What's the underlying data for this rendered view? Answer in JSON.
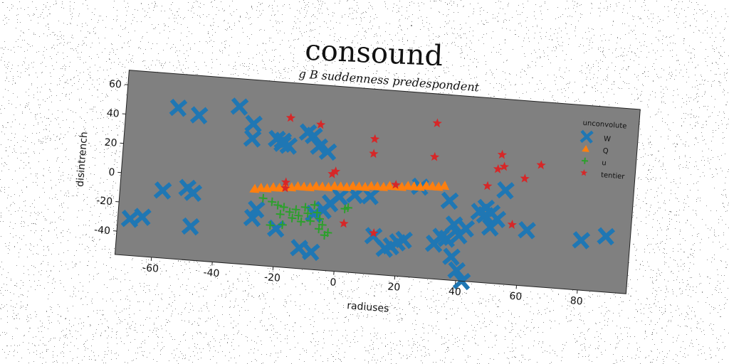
{
  "page": {
    "title": "consound"
  },
  "chart_data": {
    "type": "scatter",
    "title": "g B suddenness predespondent",
    "xlabel": "radiuses",
    "ylabel": "disintrench",
    "xlim": [
      -72,
      96
    ],
    "ylim": [
      -56,
      70
    ],
    "xticks": [
      -60,
      -40,
      -20,
      0,
      20,
      40,
      60,
      80
    ],
    "yticks": [
      -40,
      -20,
      0,
      20,
      40,
      60
    ],
    "grid": false,
    "plot_background": "#808080",
    "legend": {
      "title": "unconvolute",
      "placement": "top-right",
      "entries": [
        "W",
        "Q",
        "u",
        "tentier"
      ]
    },
    "series": [
      {
        "name": "W",
        "marker": "X",
        "color": "#1f77b4",
        "points": [
          [
            -55,
            47
          ],
          [
            -48,
            43
          ],
          [
            -35,
            51
          ],
          [
            -30,
            40
          ],
          [
            -30,
            30
          ],
          [
            -22,
            31
          ],
          [
            -20,
            30
          ],
          [
            -20,
            28
          ],
          [
            -18,
            27
          ],
          [
            -12,
            37
          ],
          [
            -10,
            35
          ],
          [
            -8,
            28
          ],
          [
            -5,
            25
          ],
          [
            -58,
            -10
          ],
          [
            -50,
            -7
          ],
          [
            -48,
            -10
          ],
          [
            -68,
            -31
          ],
          [
            -64,
            -29
          ],
          [
            -48,
            -33
          ],
          [
            -28,
            -24
          ],
          [
            -27,
            -18
          ],
          [
            -20,
            -30
          ],
          [
            -8,
            -18
          ],
          [
            -5,
            -15
          ],
          [
            -3,
            -10
          ],
          [
            0,
            -5
          ],
          [
            5,
            -3
          ],
          [
            10,
            -3
          ],
          [
            -12,
            -42
          ],
          [
            -8,
            -44
          ],
          [
            12,
            -30
          ],
          [
            16,
            -38
          ],
          [
            18,
            -36
          ],
          [
            20,
            -33
          ],
          [
            22,
            -31
          ],
          [
            32,
            -32
          ],
          [
            36,
            -28
          ],
          [
            38,
            -18
          ],
          [
            34,
            -27
          ],
          [
            40,
            -25
          ],
          [
            42,
            -20
          ],
          [
            36,
            -2
          ],
          [
            26,
            6
          ],
          [
            46,
            -8
          ],
          [
            48,
            -5
          ],
          [
            48,
            -10
          ],
          [
            50,
            -8
          ],
          [
            52,
            -12
          ],
          [
            50,
            -18
          ],
          [
            54,
            8
          ],
          [
            62,
            -18
          ],
          [
            38,
            -40
          ],
          [
            40,
            -49
          ],
          [
            42,
            -56
          ],
          [
            88,
            -18
          ],
          [
            80,
            -22
          ]
        ]
      },
      {
        "name": "Q",
        "marker": "^",
        "color": "#ff7f0e",
        "points": [
          [
            -28,
            -4
          ],
          [
            -26,
            -3
          ],
          [
            -24,
            -3
          ],
          [
            -22,
            -2
          ],
          [
            -20,
            -2
          ],
          [
            -18,
            -1
          ],
          [
            -16,
            -1
          ],
          [
            -14,
            0
          ],
          [
            -12,
            0
          ],
          [
            -10,
            0
          ],
          [
            -8,
            1
          ],
          [
            -6,
            1
          ],
          [
            -4,
            1
          ],
          [
            -2,
            2
          ],
          [
            0,
            2
          ],
          [
            2,
            2
          ],
          [
            4,
            3
          ],
          [
            6,
            3
          ],
          [
            8,
            3
          ],
          [
            10,
            4
          ],
          [
            12,
            4
          ],
          [
            14,
            4
          ],
          [
            16,
            5
          ],
          [
            18,
            5
          ],
          [
            20,
            5
          ],
          [
            22,
            6
          ],
          [
            24,
            6
          ],
          [
            26,
            6
          ],
          [
            28,
            7
          ],
          [
            30,
            7
          ],
          [
            32,
            7
          ],
          [
            34,
            8
          ]
        ]
      },
      {
        "name": "u",
        "marker": "+",
        "color": "#2ca02c",
        "points": [
          [
            -25,
            -10
          ],
          [
            -22,
            -12
          ],
          [
            -20,
            -14
          ],
          [
            -19,
            -20
          ],
          [
            -18,
            -15
          ],
          [
            -16,
            -18
          ],
          [
            -15,
            -22
          ],
          [
            -14,
            -16
          ],
          [
            -13,
            -20
          ],
          [
            -12,
            -24
          ],
          [
            -11,
            -14
          ],
          [
            -10,
            -18
          ],
          [
            -9,
            -23
          ],
          [
            -8,
            -12
          ],
          [
            -7,
            -17
          ],
          [
            -6,
            -21
          ],
          [
            -6,
            -28
          ],
          [
            -4,
            -32
          ],
          [
            -3,
            -30
          ],
          [
            -5,
            -25
          ],
          [
            -22,
            -28
          ],
          [
            -18,
            -27
          ],
          [
            2,
            -13
          ],
          [
            3,
            -12
          ]
        ]
      },
      {
        "name": "tentier",
        "marker": "*",
        "color": "#d62728",
        "points": [
          [
            -18,
            46
          ],
          [
            -8,
            43
          ],
          [
            10,
            36
          ],
          [
            10,
            26
          ],
          [
            -2,
            12
          ],
          [
            -3,
            10
          ],
          [
            -18,
            2
          ],
          [
            -18,
            -2
          ],
          [
            18,
            6
          ],
          [
            30,
            27
          ],
          [
            30,
            50
          ],
          [
            2,
            -23
          ],
          [
            12,
            -28
          ],
          [
            52,
            32
          ],
          [
            51,
            22
          ],
          [
            53,
            24
          ],
          [
            48,
            10
          ],
          [
            60,
            17
          ],
          [
            65,
            27
          ],
          [
            57,
            -15
          ]
        ]
      }
    ]
  }
}
